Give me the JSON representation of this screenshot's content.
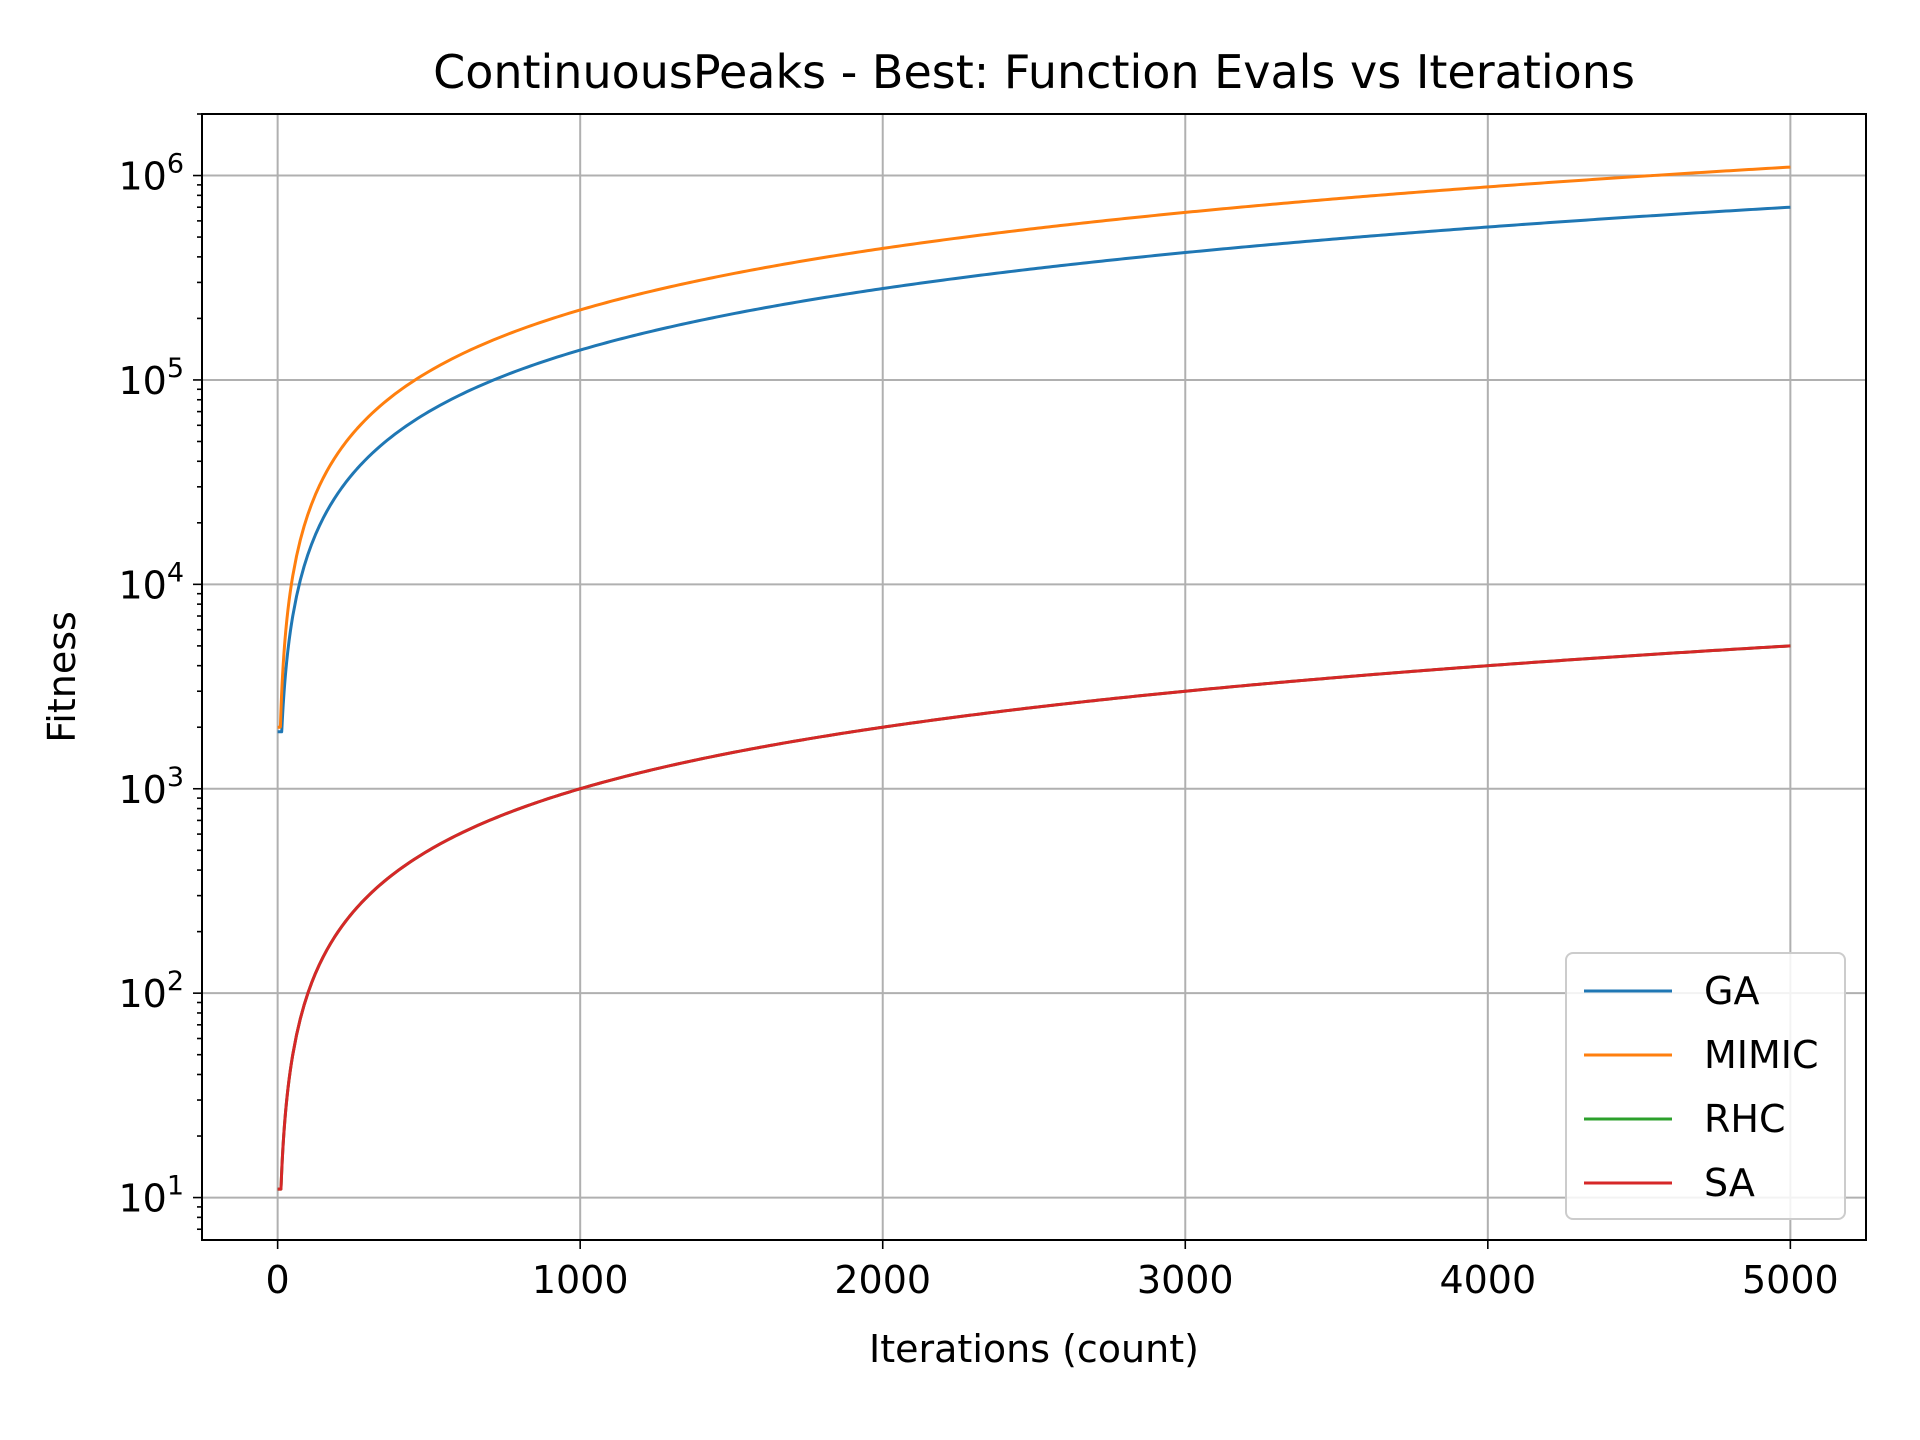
{
  "chart_data": {
    "type": "line",
    "title": "ContinuousPeaks - Best: Function Evals vs Iterations",
    "xlabel": "Iterations (count)",
    "ylabel": "Fitness",
    "xlim": [
      -250,
      5250
    ],
    "ylim": [
      6.2,
      2000000
    ],
    "yscale": "log",
    "grid": true,
    "legend_position": "lower-right",
    "x_ticks": [
      0,
      1000,
      2000,
      3000,
      4000,
      5000
    ],
    "x_tick_labels": [
      "0",
      "1000",
      "2000",
      "3000",
      "4000",
      "5000"
    ],
    "y_ticks": [
      10,
      100,
      1000,
      10000,
      100000,
      1000000
    ],
    "y_tick_labels": [
      {
        "base": "10",
        "exp": "1"
      },
      {
        "base": "10",
        "exp": "2"
      },
      {
        "base": "10",
        "exp": "3"
      },
      {
        "base": "10",
        "exp": "4"
      },
      {
        "base": "10",
        "exp": "5"
      },
      {
        "base": "10",
        "exp": "6"
      }
    ],
    "series": [
      {
        "name": "GA",
        "color": "#1f77b4",
        "start_x": 0,
        "end_x": 5000,
        "start_y": 1900,
        "end_y": 700000,
        "per_iteration": 140
      },
      {
        "name": "MIMIC",
        "color": "#ff7f0e",
        "start_x": 0,
        "end_x": 5000,
        "start_y": 2000,
        "end_y": 1100000,
        "per_iteration": 220
      },
      {
        "name": "RHC",
        "color": "#2ca02c",
        "start_x": 0,
        "end_x": 5000,
        "start_y": 11,
        "end_y": 5000,
        "per_iteration": 1
      },
      {
        "name": "SA",
        "color": "#d62728",
        "start_x": 0,
        "end_x": 5000,
        "start_y": 11,
        "end_y": 5000,
        "per_iteration": 1
      }
    ]
  }
}
